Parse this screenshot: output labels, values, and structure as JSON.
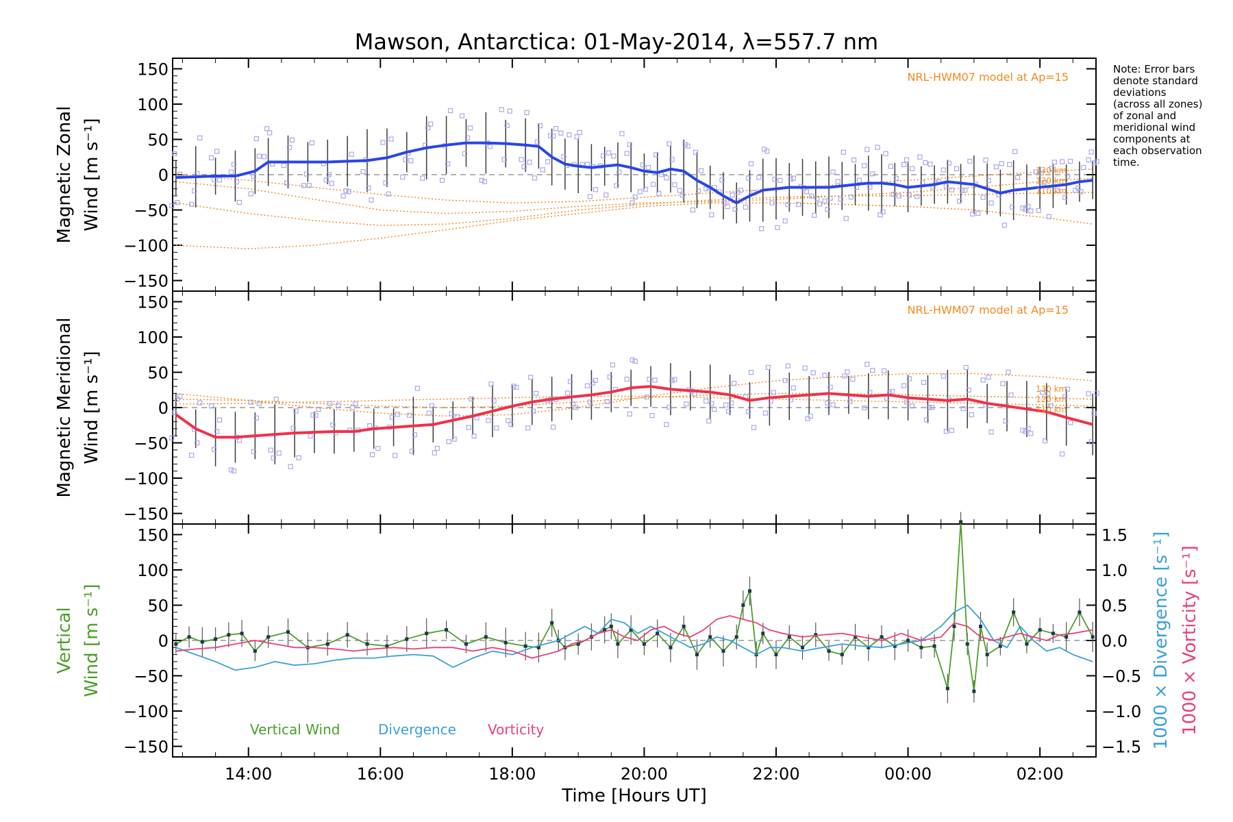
{
  "title": "Mawson, Antarctica: 01-May-2014, λ=557.7 nm",
  "note": [
    "Note: Error bars",
    "denote standard",
    "deviations",
    "(across all zones)",
    "of zonal and",
    "meridional wind",
    "components at",
    "each observation",
    "time."
  ],
  "x_axis": {
    "label": "Time [Hours UT]",
    "ticks": [
      {
        "value": 14,
        "label": "14:00"
      },
      {
        "value": 16,
        "label": "16:00"
      },
      {
        "value": 18,
        "label": "18:00"
      },
      {
        "value": 20,
        "label": "20:00"
      },
      {
        "value": 22,
        "label": "22:00"
      },
      {
        "value": 24,
        "label": "00:00"
      },
      {
        "value": 26,
        "label": "02:00"
      }
    ],
    "range": [
      12.85,
      26.85
    ]
  },
  "colors": {
    "zonal": "#2a45e8",
    "meridional": "#f0304a",
    "model": "#f28a20",
    "vertical": "#4c9e2a",
    "divergence": "#3aa0d8",
    "vorticity": "#e8407a",
    "scatter": "#a8a8e8",
    "errorbar": "#3a3a3a"
  },
  "chart_data": [
    {
      "type": "line",
      "panel": "zonal",
      "ylabel": "Magnetic Zonal Wind [m s⁻¹]",
      "ylabel_lines": [
        "Magnetic Zonal",
        "Wind [m s⁻¹]"
      ],
      "ylim": [
        -165,
        165
      ],
      "yticks": [
        -150,
        -100,
        -50,
        0,
        50,
        100,
        150
      ],
      "model_label": "NRL-HWM07 model at Ap=15",
      "height_labels": [
        "130 km",
        "120 km",
        "110 km"
      ],
      "series": [
        {
          "x": [
            12.9,
            13.2,
            13.5,
            13.8,
            14.1,
            14.3,
            14.6,
            14.9,
            15.2,
            15.5,
            15.8,
            16.1,
            16.4,
            16.7,
            17.0,
            17.3,
            17.6,
            17.9,
            18.2,
            18.4,
            18.6,
            18.8,
            19.0,
            19.2,
            19.4,
            19.6,
            19.8,
            20.0,
            20.2,
            20.4,
            20.6,
            20.8,
            21.0,
            21.2,
            21.4,
            21.6,
            21.8,
            22.0,
            22.2,
            22.4,
            22.6,
            22.8,
            23.0,
            23.2,
            23.4,
            23.6,
            23.8,
            24.0,
            24.2,
            24.4,
            24.6,
            24.8,
            25.0,
            25.2,
            25.4,
            25.6,
            25.8,
            26.0,
            26.2,
            26.4,
            26.6,
            26.8
          ],
          "y": [
            -4,
            -3,
            -2,
            -2,
            5,
            18,
            18,
            18,
            18,
            19,
            20,
            24,
            32,
            38,
            42,
            45,
            45,
            44,
            42,
            40,
            25,
            15,
            12,
            10,
            12,
            14,
            10,
            5,
            3,
            8,
            5,
            -8,
            -18,
            -30,
            -40,
            -30,
            -22,
            -20,
            -18,
            -18,
            -18,
            -18,
            -16,
            -14,
            -12,
            -12,
            -14,
            -18,
            -16,
            -14,
            -10,
            -12,
            -14,
            -20,
            -26,
            -22,
            -20,
            -18,
            -16,
            -14,
            -10,
            -8
          ]
        }
      ],
      "model_curves": [
        {
          "name": "model-1",
          "x": [
            12.9,
            14,
            15,
            16,
            17,
            18,
            19,
            20,
            21,
            22,
            23,
            24,
            25,
            26,
            26.8
          ],
          "y": [
            -100,
            -105,
            -100,
            -90,
            -78,
            -65,
            -55,
            -45,
            -40,
            -40,
            -42,
            -45,
            -50,
            -60,
            -70
          ]
        },
        {
          "name": "model-2",
          "x": [
            12.9,
            14,
            15,
            16,
            17,
            18,
            19,
            20,
            21,
            22,
            23,
            24,
            25,
            26,
            26.8
          ],
          "y": [
            -40,
            -55,
            -65,
            -72,
            -70,
            -62,
            -50,
            -42,
            -36,
            -32,
            -30,
            -30,
            -28,
            -26,
            -25
          ]
        },
        {
          "name": "model-3",
          "x": [
            12.9,
            14,
            15,
            16,
            17,
            18,
            19,
            20,
            21,
            22,
            23,
            24,
            25,
            26,
            26.8
          ],
          "y": [
            -10,
            -20,
            -35,
            -50,
            -55,
            -52,
            -45,
            -40,
            -38,
            -35,
            -30,
            -25,
            -18,
            -10,
            -5
          ]
        },
        {
          "name": "model-4",
          "x": [
            12.9,
            14,
            15,
            16,
            17,
            18,
            19,
            20,
            21,
            22,
            23,
            24,
            25,
            26,
            26.8
          ],
          "y": [
            0,
            -8,
            -18,
            -28,
            -36,
            -40,
            -38,
            -32,
            -26,
            -20,
            -14,
            -8,
            -2,
            4,
            8
          ]
        }
      ]
    },
    {
      "type": "line",
      "panel": "meridional",
      "ylabel": "Magnetic Meridional Wind [m s⁻¹]",
      "ylabel_lines": [
        "Magnetic Meridional",
        "Wind [m s⁻¹]"
      ],
      "ylim": [
        -165,
        165
      ],
      "yticks": [
        -150,
        -100,
        -50,
        0,
        50,
        100,
        150
      ],
      "model_label": "NRL-HWM07 model at Ap=15",
      "height_labels": [
        "130 km",
        "120 km",
        "110 km"
      ],
      "series": [
        {
          "x": [
            12.9,
            13.2,
            13.5,
            13.8,
            14.1,
            14.4,
            14.7,
            15.0,
            15.3,
            15.6,
            15.9,
            16.2,
            16.5,
            16.8,
            17.1,
            17.4,
            17.7,
            18.0,
            18.3,
            18.6,
            18.9,
            19.2,
            19.5,
            19.8,
            20.1,
            20.4,
            20.7,
            21.0,
            21.3,
            21.6,
            21.9,
            22.2,
            22.5,
            22.8,
            23.1,
            23.4,
            23.7,
            24.0,
            24.3,
            24.6,
            24.9,
            25.2,
            25.5,
            25.8,
            26.1,
            26.4,
            26.8
          ],
          "y": [
            -10,
            -30,
            -42,
            -42,
            -40,
            -38,
            -36,
            -35,
            -34,
            -34,
            -30,
            -28,
            -26,
            -24,
            -18,
            -12,
            -5,
            2,
            8,
            12,
            15,
            18,
            22,
            28,
            30,
            26,
            24,
            22,
            18,
            10,
            14,
            16,
            18,
            20,
            18,
            16,
            18,
            14,
            12,
            10,
            12,
            6,
            2,
            -2,
            -6,
            -14,
            -24
          ]
        }
      ],
      "model_curves": [
        {
          "name": "model-1",
          "x": [
            12.9,
            14,
            15,
            16,
            17,
            18,
            19,
            20,
            21,
            22,
            23,
            24,
            25,
            26,
            26.8
          ],
          "y": [
            20,
            10,
            0,
            -8,
            -12,
            -10,
            0,
            15,
            28,
            38,
            44,
            48,
            48,
            44,
            38
          ]
        },
        {
          "name": "model-2",
          "x": [
            12.9,
            14,
            15,
            16,
            17,
            18,
            19,
            20,
            21,
            22,
            23,
            24,
            25,
            26,
            26.8
          ],
          "y": [
            12,
            10,
            6,
            2,
            0,
            2,
            8,
            14,
            18,
            20,
            20,
            18,
            16,
            14,
            12
          ]
        },
        {
          "name": "model-3",
          "x": [
            12.9,
            14,
            15,
            16,
            17,
            18,
            19,
            20,
            21,
            22,
            23,
            24,
            25,
            26,
            26.8
          ],
          "y": [
            5,
            6,
            8,
            10,
            12,
            14,
            16,
            16,
            14,
            12,
            10,
            8,
            6,
            4,
            2
          ]
        }
      ]
    },
    {
      "type": "line",
      "panel": "vertical",
      "ylabel": "Vertical Wind [m s⁻¹]",
      "ylabel_lines": [
        "Vertical",
        "Wind [m s⁻¹]"
      ],
      "ylim": [
        -165,
        165
      ],
      "yticks": [
        -150,
        -100,
        -50,
        0,
        50,
        100,
        150
      ],
      "y2label": "1000 × Divergence [s⁻¹]",
      "y3label": "1000 × Vorticity [s⁻¹]",
      "y2lim": [
        -1.65,
        1.65
      ],
      "y2ticks": [
        -1.5,
        -1.0,
        -0.5,
        0.0,
        0.5,
        1.0,
        1.5
      ],
      "y2ticklabels": [
        "−1.5",
        "−1.0",
        "−0.5",
        "0.0",
        "0.5",
        "1.0",
        "1.5"
      ],
      "legend": [
        "Vertical Wind",
        "Divergence",
        "Vorticity"
      ],
      "legend_position": "bottom-left",
      "series": [
        {
          "name": "Vertical Wind",
          "axis": "left",
          "x": [
            12.9,
            13.1,
            13.3,
            13.5,
            13.7,
            13.9,
            14.1,
            14.3,
            14.6,
            14.9,
            15.2,
            15.5,
            15.8,
            16.1,
            16.4,
            16.7,
            17.0,
            17.3,
            17.6,
            17.9,
            18.2,
            18.4,
            18.6,
            18.7,
            18.8,
            19.0,
            19.2,
            19.4,
            19.5,
            19.6,
            19.8,
            20.0,
            20.2,
            20.4,
            20.6,
            20.8,
            21.0,
            21.2,
            21.4,
            21.5,
            21.6,
            21.7,
            21.8,
            22.0,
            22.2,
            22.4,
            22.6,
            22.8,
            23.0,
            23.2,
            23.4,
            23.6,
            23.8,
            24.0,
            24.2,
            24.4,
            24.6,
            24.7,
            24.8,
            24.9,
            25.0,
            25.1,
            25.2,
            25.4,
            25.6,
            25.8,
            26.0,
            26.2,
            26.4,
            26.6,
            26.8
          ],
          "y": [
            -5,
            5,
            -2,
            2,
            8,
            10,
            -15,
            5,
            12,
            -10,
            -5,
            8,
            -5,
            -8,
            2,
            10,
            15,
            -5,
            5,
            -3,
            -8,
            -10,
            25,
            0,
            -10,
            -5,
            5,
            15,
            20,
            -5,
            15,
            -5,
            10,
            -10,
            20,
            -20,
            5,
            -15,
            5,
            50,
            70,
            -20,
            10,
            -20,
            5,
            -10,
            8,
            -15,
            -20,
            5,
            -10,
            5,
            -8,
            0,
            -10,
            -8,
            -68,
            20,
            168,
            -5,
            -72,
            20,
            -20,
            -8,
            40,
            -5,
            15,
            10,
            5,
            40,
            5
          ]
        },
        {
          "name": "Divergence",
          "axis": "right",
          "x": [
            12.9,
            13.2,
            13.5,
            13.8,
            14.1,
            14.4,
            14.7,
            15.0,
            15.3,
            15.6,
            15.9,
            16.2,
            16.5,
            16.8,
            17.1,
            17.4,
            17.7,
            18.0,
            18.3,
            18.5,
            18.7,
            18.9,
            19.1,
            19.3,
            19.5,
            19.7,
            19.9,
            20.1,
            20.3,
            20.5,
            20.7,
            20.9,
            21.1,
            21.3,
            21.5,
            21.7,
            21.9,
            22.1,
            22.4,
            22.7,
            23.0,
            23.3,
            23.6,
            23.9,
            24.2,
            24.5,
            24.7,
            24.9,
            25.1,
            25.3,
            25.5,
            25.7,
            25.9,
            26.1,
            26.3,
            26.5,
            26.8
          ],
          "y": [
            -0.1,
            -0.2,
            -0.3,
            -0.42,
            -0.38,
            -0.3,
            -0.35,
            -0.33,
            -0.28,
            -0.25,
            -0.25,
            -0.22,
            -0.2,
            -0.22,
            -0.38,
            -0.25,
            -0.15,
            -0.2,
            -0.1,
            -0.05,
            0.0,
            0.1,
            0.2,
            0.1,
            0.3,
            0.25,
            0.1,
            0.2,
            0.1,
            0.0,
            -0.1,
            -0.05,
            0.05,
            0.0,
            -0.1,
            -0.2,
            -0.1,
            -0.1,
            -0.15,
            -0.1,
            -0.05,
            -0.08,
            -0.1,
            -0.05,
            0.0,
            0.2,
            0.4,
            0.5,
            0.3,
            0.0,
            -0.1,
            0.2,
            0.0,
            -0.15,
            -0.1,
            -0.2,
            -0.3
          ]
        },
        {
          "name": "Vorticity",
          "axis": "right",
          "x": [
            12.9,
            13.2,
            13.5,
            13.8,
            14.1,
            14.4,
            14.7,
            15.0,
            15.3,
            15.6,
            15.9,
            16.2,
            16.5,
            16.8,
            17.1,
            17.4,
            17.7,
            18.0,
            18.3,
            18.5,
            18.7,
            18.9,
            19.1,
            19.3,
            19.5,
            19.7,
            19.9,
            20.1,
            20.3,
            20.5,
            20.7,
            20.9,
            21.1,
            21.3,
            21.5,
            21.7,
            21.9,
            22.1,
            22.4,
            22.7,
            23.0,
            23.3,
            23.6,
            23.9,
            24.2,
            24.5,
            24.7,
            24.9,
            25.1,
            25.3,
            25.5,
            25.7,
            25.9,
            26.1,
            26.3,
            26.5,
            26.8
          ],
          "y": [
            -0.15,
            -0.12,
            -0.1,
            -0.05,
            0.0,
            -0.05,
            -0.1,
            -0.1,
            -0.12,
            -0.15,
            -0.12,
            -0.1,
            -0.12,
            -0.1,
            -0.1,
            -0.15,
            -0.1,
            -0.15,
            -0.25,
            -0.2,
            -0.15,
            -0.05,
            0.0,
            0.1,
            0.15,
            0.05,
            0.0,
            0.15,
            0.2,
            0.1,
            0.05,
            0.15,
            0.3,
            0.35,
            0.3,
            0.25,
            0.15,
            0.1,
            0.05,
            0.08,
            0.1,
            0.05,
            0.0,
            0.1,
            0.0,
            0.05,
            0.25,
            0.2,
            0.05,
            0.0,
            0.05,
            0.1,
            0.05,
            0.0,
            0.08,
            0.1,
            0.15
          ]
        }
      ]
    }
  ]
}
